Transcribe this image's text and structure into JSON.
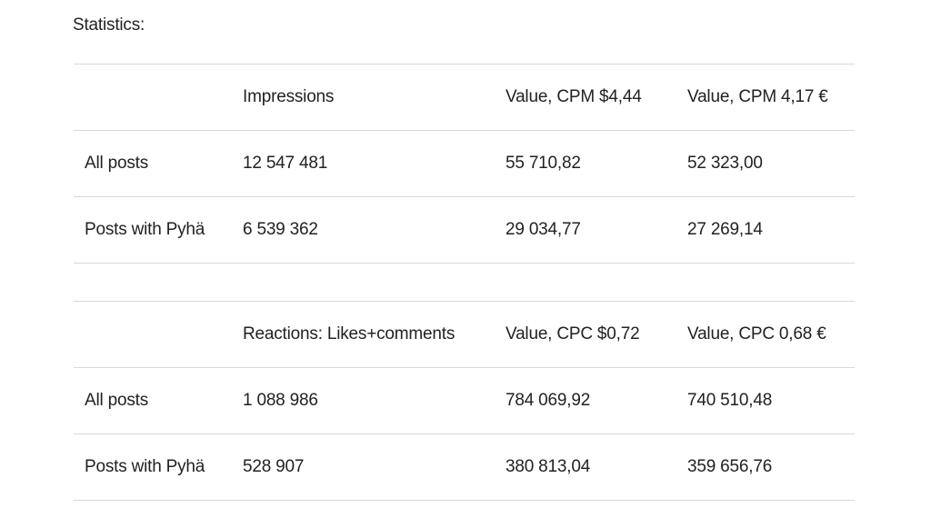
{
  "heading": "Statistics:",
  "impressions_table": {
    "headers": [
      "",
      "Impressions",
      "Value, CPM $4,44",
      "Value, CPM 4,17 €"
    ],
    "rows": [
      [
        "All posts",
        "12 547 481",
        "55 710,82",
        "52 323,00"
      ],
      [
        "Posts with Pyhä",
        "6 539 362",
        "29 034,77",
        "27 269,14"
      ]
    ]
  },
  "reactions_table": {
    "headers": [
      "",
      "Reactions: Likes+comments",
      "Value, CPC $0,72",
      "Value, CPC 0,68 €"
    ],
    "rows": [
      [
        "All posts",
        "1 088 986",
        "784 069,92",
        "740 510,48"
      ],
      [
        "Posts with Pyhä",
        "528 907",
        "380 813,04",
        "359 656,76"
      ]
    ]
  }
}
